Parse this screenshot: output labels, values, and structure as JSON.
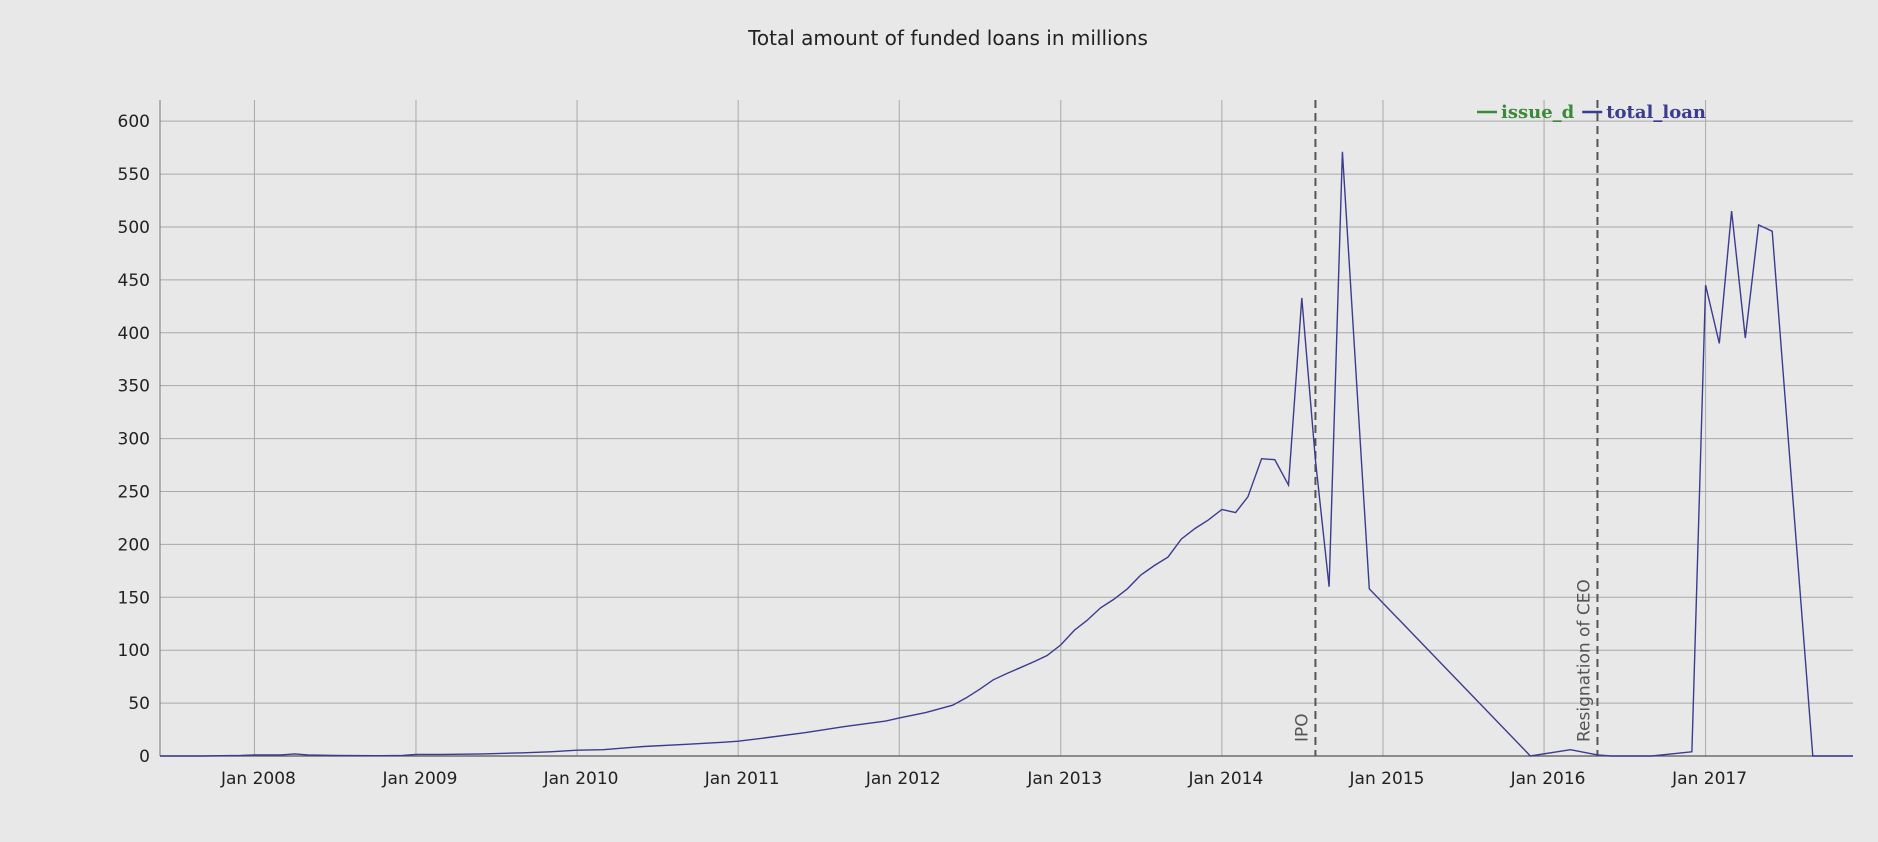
{
  "chart_data": {
    "type": "line",
    "title": "Total amount of funded loans in millions",
    "xlabel": "",
    "ylabel": "",
    "x_ticks": [
      "Jan 2008",
      "Jan 2009",
      "Jan 2010",
      "Jan 2011",
      "Jan 2012",
      "Jan 2013",
      "Jan 2014",
      "Jan 2015",
      "Jan 2016",
      "Jan 2017"
    ],
    "y_ticks": [
      0,
      50,
      100,
      150,
      200,
      250,
      300,
      350,
      400,
      450,
      500,
      550,
      600
    ],
    "xlim": [
      "2007-06-01",
      "2017-12-01"
    ],
    "ylim": [
      0,
      620
    ],
    "grid": true,
    "legend": {
      "placement": "top-right",
      "entries": [
        {
          "name": "issue_d",
          "color": "#3a8a3a"
        },
        {
          "name": "total_loan",
          "color": "#3b3b8f"
        }
      ]
    },
    "annotations": [
      {
        "date": "2014-08-01",
        "label": "IPO"
      },
      {
        "date": "2016-05-01",
        "label": "Resignation of CEO"
      }
    ],
    "series": [
      {
        "name": "total_loan",
        "color": "#3b3b8f",
        "points": [
          [
            "2007-06-01",
            0
          ],
          [
            "2007-09-01",
            0
          ],
          [
            "2007-12-01",
            0.5
          ],
          [
            "2008-01-01",
            1
          ],
          [
            "2008-03-01",
            1
          ],
          [
            "2008-04-01",
            2
          ],
          [
            "2008-05-01",
            1
          ],
          [
            "2008-07-01",
            0.5
          ],
          [
            "2008-10-01",
            0.3
          ],
          [
            "2008-12-01",
            0.5
          ],
          [
            "2009-01-01",
            1.5
          ],
          [
            "2009-03-01",
            1.5
          ],
          [
            "2009-06-01",
            2
          ],
          [
            "2009-09-01",
            3
          ],
          [
            "2009-11-01",
            4
          ],
          [
            "2010-01-01",
            5.5
          ],
          [
            "2010-03-01",
            6
          ],
          [
            "2010-06-01",
            9
          ],
          [
            "2010-09-01",
            11
          ],
          [
            "2010-12-01",
            13
          ],
          [
            "2011-01-01",
            14
          ],
          [
            "2011-03-01",
            17
          ],
          [
            "2011-06-01",
            22
          ],
          [
            "2011-09-01",
            28
          ],
          [
            "2011-12-01",
            33
          ],
          [
            "2012-01-01",
            36
          ],
          [
            "2012-03-01",
            41
          ],
          [
            "2012-05-01",
            48
          ],
          [
            "2012-06-01",
            55
          ],
          [
            "2012-07-01",
            63
          ],
          [
            "2012-08-01",
            72
          ],
          [
            "2012-09-01",
            78
          ],
          [
            "2012-11-01",
            89
          ],
          [
            "2012-12-01",
            95
          ],
          [
            "2013-01-01",
            105
          ],
          [
            "2013-02-01",
            119
          ],
          [
            "2013-03-01",
            128
          ],
          [
            "2013-04-01",
            140
          ],
          [
            "2013-05-01",
            148
          ],
          [
            "2013-06-01",
            158
          ],
          [
            "2013-07-01",
            171
          ],
          [
            "2013-08-01",
            180
          ],
          [
            "2013-09-01",
            188
          ],
          [
            "2013-10-01",
            205
          ],
          [
            "2013-11-01",
            215
          ],
          [
            "2013-12-01",
            223
          ],
          [
            "2014-01-01",
            233
          ],
          [
            "2014-02-01",
            230
          ],
          [
            "2014-03-01",
            245
          ],
          [
            "2014-04-01",
            281
          ],
          [
            "2014-05-01",
            280
          ],
          [
            "2014-06-01",
            256
          ],
          [
            "2014-07-01",
            433
          ],
          [
            "2014-08-01",
            280
          ],
          [
            "2014-09-01",
            160
          ],
          [
            "2014-10-01",
            571
          ],
          [
            "2014-12-01",
            158
          ],
          [
            "2015-12-01",
            0
          ],
          [
            "2016-03-01",
            6
          ],
          [
            "2016-05-01",
            1
          ],
          [
            "2016-06-01",
            0
          ],
          [
            "2016-09-01",
            0
          ],
          [
            "2016-12-01",
            4
          ],
          [
            "2017-01-01",
            445
          ],
          [
            "2017-02-01",
            390
          ],
          [
            "2017-03-01",
            515
          ],
          [
            "2017-04-01",
            395
          ],
          [
            "2017-05-01",
            502
          ],
          [
            "2017-06-01",
            496
          ],
          [
            "2017-09-01",
            0
          ],
          [
            "2017-12-01",
            0
          ]
        ]
      }
    ]
  }
}
